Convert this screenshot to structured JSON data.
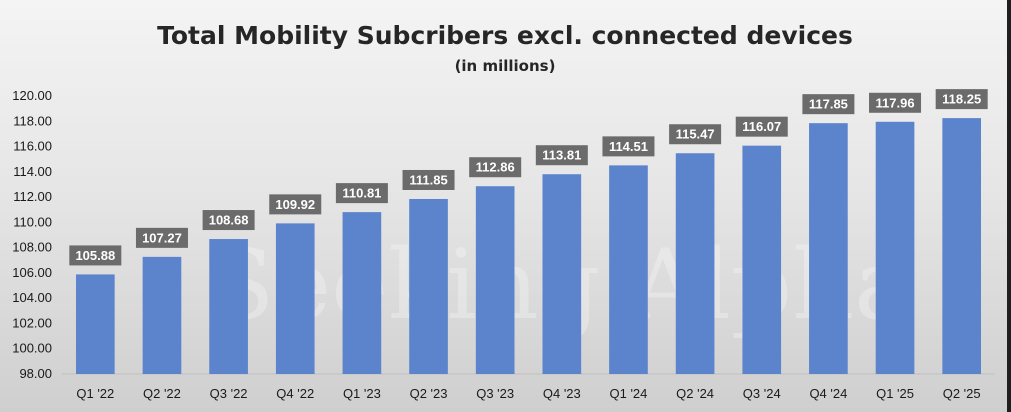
{
  "chart_data": {
    "type": "bar",
    "title": "Total Mobility Subcribers excl. connected devices",
    "subtitle": "(in millions)",
    "categories": [
      "Q1 '22",
      "Q2 '22",
      "Q3 '22",
      "Q4 '22",
      "Q1 '23",
      "Q2 '23",
      "Q3 '23",
      "Q4 '23",
      "Q1 '24",
      "Q2 '24",
      "Q3 '24",
      "Q4 '24",
      "Q1 '25",
      "Q2 '25"
    ],
    "values": [
      105.88,
      107.27,
      108.68,
      109.92,
      110.81,
      111.85,
      112.86,
      113.81,
      114.51,
      115.47,
      116.07,
      117.85,
      117.96,
      118.25
    ],
    "ylim": [
      98,
      120
    ],
    "ytick_labels": [
      "98.00",
      "100.00",
      "102.00",
      "104.00",
      "106.00",
      "108.00",
      "110.00",
      "112.00",
      "114.00",
      "116.00",
      "118.00",
      "120.00"
    ],
    "xlabel": "",
    "ylabel": "",
    "grid": false,
    "bar_color": "#5b84cc",
    "label_bg_color": "#6b6b6b",
    "watermark": "Seeking Alpha"
  }
}
